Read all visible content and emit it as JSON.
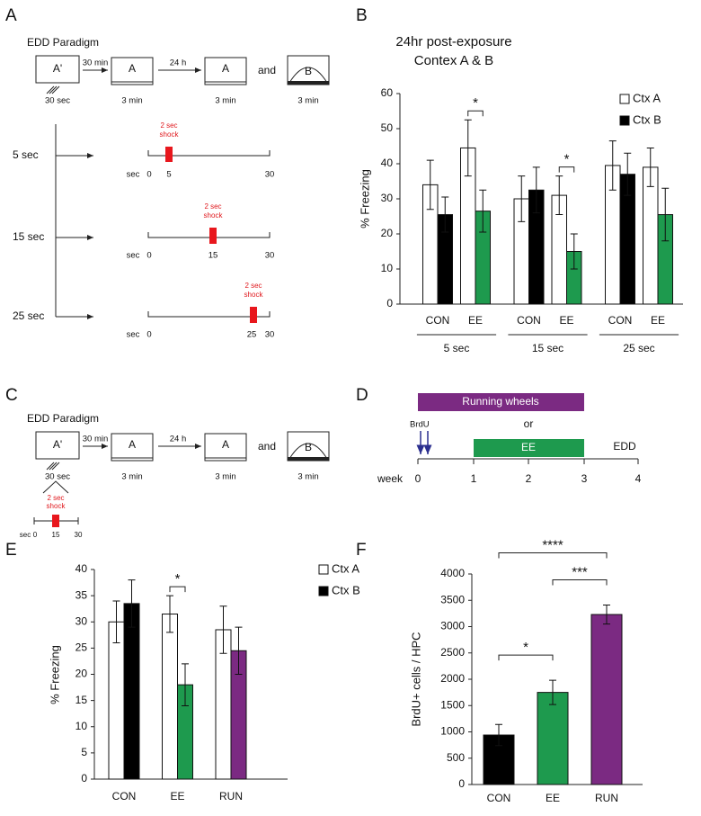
{
  "panel_labels": [
    "A",
    "B",
    "C",
    "D",
    "E",
    "F"
  ],
  "panel_a": {
    "title": "EDD Paradigm",
    "box1": "A'",
    "box1_time": "30 sec",
    "arrow1": "30 min",
    "box2": "A",
    "box2_time": "3 min",
    "arrow2": "24 h",
    "box3": "A",
    "box3_time": "3 min",
    "and": "and",
    "box4": "B",
    "box4_time": "3 min",
    "shock_label": [
      "2 sec",
      "shock"
    ],
    "rows": [
      {
        "label": "5 sec",
        "unit": "sec",
        "start": "0",
        "shock_at": "5",
        "end": "30"
      },
      {
        "label": "15 sec",
        "unit": "sec",
        "start": "0",
        "shock_at": "15",
        "end": "30"
      },
      {
        "label": "25 sec",
        "unit": "sec",
        "start": "0",
        "shock_at": "25",
        "end": "30"
      }
    ]
  },
  "panel_c": {
    "title": "EDD Paradigm",
    "box1": "A'",
    "box1_time": "30 sec",
    "arrow1": "30 min",
    "box2": "A",
    "box2_time": "3 min",
    "arrow2": "24 h",
    "box3": "A",
    "box3_time": "3 min",
    "and": "and",
    "box4": "B",
    "box4_time": "3 min",
    "shock_label": [
      "2 sec",
      "shock"
    ],
    "timeline": {
      "unit": "sec",
      "start": "0",
      "shock_at": "15",
      "end": "30"
    }
  },
  "panel_d": {
    "bar1": "Running wheels",
    "marker": "BrdU",
    "or": "or",
    "bar2": "EE",
    "end_label": "EDD",
    "axis_label": "week",
    "ticks": [
      "0",
      "1",
      "2",
      "3",
      "4"
    ]
  },
  "chart_data": [
    {
      "type": "bar",
      "title": "24hr post-exposure",
      "subtitle": "Contex A & B",
      "ylabel": "% Freezing",
      "ylim": [
        0,
        60
      ],
      "yticks": [
        0,
        10,
        20,
        30,
        40,
        50,
        60
      ],
      "categories": [
        "CON",
        "EE",
        "CON",
        "EE",
        "CON",
        "EE"
      ],
      "groups": [
        "5 sec",
        "15 sec",
        "25 sec"
      ],
      "series": [
        {
          "name": "Ctx A",
          "color": "#ffffff",
          "values": [
            34,
            44.5,
            30,
            31,
            39.5,
            39
          ],
          "errors": [
            7,
            8,
            6.5,
            5.5,
            7,
            5.5
          ]
        },
        {
          "name": "Ctx B",
          "color": "#000000",
          "colors": [
            "#000000",
            "#1e9a4e",
            "#000000",
            "#1e9a4e",
            "#000000",
            "#1e9a4e"
          ],
          "values": [
            25.5,
            26.5,
            32.5,
            15,
            37,
            25.5
          ],
          "errors": [
            5,
            6,
            6.5,
            5,
            6,
            7.5
          ]
        }
      ],
      "significance": [
        {
          "label": "*",
          "category": 1
        },
        {
          "label": "*",
          "category": 3
        }
      ],
      "legend": "top right"
    },
    {
      "type": "bar",
      "ylabel": "% Freezing",
      "ylim": [
        0,
        40
      ],
      "yticks": [
        0,
        5,
        10,
        15,
        20,
        25,
        30,
        35,
        40
      ],
      "categories": [
        "CON",
        "EE",
        "RUN"
      ],
      "series": [
        {
          "name": "Ctx A",
          "color": "#ffffff",
          "values": [
            30,
            31.5,
            28.5
          ],
          "errors": [
            4,
            3.5,
            4.5
          ]
        },
        {
          "name": "Ctx B",
          "color": "#000000",
          "colors": [
            "#000000",
            "#1e9a4e",
            "#7b2a82"
          ],
          "values": [
            33.5,
            18,
            24.5
          ],
          "errors": [
            4.5,
            4,
            4.5
          ]
        }
      ],
      "significance": [
        {
          "label": "*",
          "category": 1
        }
      ],
      "legend": "right"
    },
    {
      "type": "bar",
      "ylabel": "BrdU+ cells / HPC",
      "ylim": [
        0,
        4000
      ],
      "yticks": [
        0,
        500,
        1000,
        1500,
        2000,
        2500,
        3000,
        3500,
        4000
      ],
      "categories": [
        "CON",
        "EE",
        "RUN"
      ],
      "values": [
        940,
        1750,
        3230
      ],
      "errors": [
        200,
        230,
        180
      ],
      "colors": [
        "#000000",
        "#1e9a4e",
        "#7b2a82"
      ],
      "significance": [
        {
          "label": "*",
          "from": 0,
          "to": 1
        },
        {
          "label": "***",
          "from": 1,
          "to": 2
        },
        {
          "label": "****",
          "from": 0,
          "to": 2
        }
      ]
    }
  ]
}
